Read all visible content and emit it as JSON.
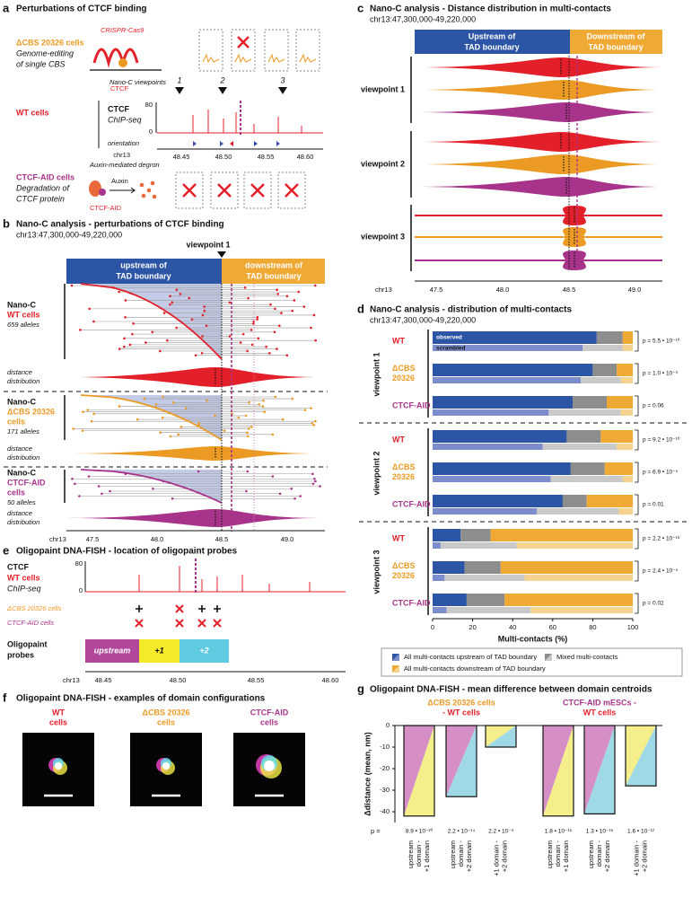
{
  "panel_a": {
    "label": "a",
    "title": "Perturbations of CTCF binding",
    "dcbs_cells": "ΔCBS 20326 cells",
    "dcbs_desc": [
      "Genome-editing",
      "of single CBS"
    ],
    "crispr": "CRISPR-Cas9",
    "ctcf": "CTCF",
    "viewpoints_label": "Nano-C viewpoints",
    "viewpoints": [
      "1",
      "2",
      "3"
    ],
    "wt_cells": "WT cells",
    "track_name": "CTCF",
    "track_assay": "ChIP-seq",
    "track_max": "80",
    "track_min": "0",
    "orientation": "orientation",
    "chrom": "chr13",
    "ticks": [
      "48.45",
      "48.50",
      "48.55",
      "48.60"
    ],
    "aid_cells": "CTCF-AID cells",
    "aid_desc": [
      "Degradation of",
      "CTCF protein"
    ],
    "degron": "Auxin-mediated degron",
    "auxin": "Auxin",
    "aid_protein": "CTCF-AID"
  },
  "panel_b": {
    "label": "b",
    "title": "Nano-C analysis - perturbations of CTCF binding",
    "region": "chr13:47,300,000-49,220,000",
    "viewpoint": "viewpoint 1",
    "upstream": [
      "upstream of",
      "TAD boundary"
    ],
    "downstream": [
      "downstream of",
      "TAD boundary"
    ],
    "samples": [
      {
        "assay": "Nano-C",
        "name": [
          "WT cells"
        ],
        "alleles": "659 alleles"
      },
      {
        "assay": "Nano-C",
        "name": [
          "ΔCBS 20326",
          "cells"
        ],
        "alleles": "171 alleles"
      },
      {
        "assay": "Nano-C",
        "name": [
          "CTCF-AID",
          "cells"
        ],
        "alleles": "50 alleles"
      }
    ],
    "distribution": [
      "distance",
      "distribution"
    ],
    "chrom": "chr13",
    "ticks": [
      "47.5",
      "48.0",
      "48.5",
      "49.0"
    ]
  },
  "panel_c": {
    "label": "c",
    "title": "Nano-C analysis - Distance distribution in multi-contacts",
    "region": "chr13:47,300,000-49,220,000",
    "upstream": [
      "Upstream of",
      "TAD boundary"
    ],
    "downstream": [
      "Downstream of",
      "TAD boundary"
    ],
    "viewpoints": [
      "viewpoint 1",
      "viewpoint 2",
      "viewpoint 3"
    ],
    "chrom": "chr13",
    "ticks": [
      "47.5",
      "48.0",
      "48.5",
      "49.0"
    ]
  },
  "panel_e": {
    "label": "e",
    "title": "Oligopaint DNA-FISH - location of oligopaint probes",
    "track_name": "CTCF",
    "track_cells": "WT cells",
    "track_assay": "ChIP-seq",
    "track_max": "80",
    "track_min": "0",
    "dcbs_cells": "ΔCBS 20326 cells",
    "aid_cells": "CTCF-AID cells",
    "probes_label": [
      "Oligopaint",
      "probes"
    ],
    "probes": [
      "upstream",
      "+1",
      "+2"
    ],
    "chrom": "chr13",
    "ticks": [
      "48.45",
      "48.50",
      "48.55",
      "48.60"
    ]
  },
  "panel_f": {
    "label": "f",
    "title": "Oligopaint DNA-FISH - examples of domain configurations",
    "samples": [
      [
        "WT",
        "cells"
      ],
      [
        "ΔCBS 20326",
        "cells"
      ],
      [
        "CTCF-AID",
        "cells"
      ]
    ]
  },
  "chart_data": [
    {
      "type": "bar",
      "orientation": "horizontal",
      "stacked": true,
      "label": "d",
      "title": "Nano-C analysis - distribution of multi-contacts",
      "subtitle": "chr13:47,300,000-49,220,000",
      "groups": [
        "viewpoint 1",
        "viewpoint 2",
        "viewpoint 3"
      ],
      "categories": [
        [
          "WT"
        ],
        [
          "ΔCBS",
          "20326"
        ],
        [
          "CTCF-AID"
        ],
        [
          "WT"
        ],
        [
          "ΔCBS",
          "20326"
        ],
        [
          "CTCF-AID"
        ],
        [
          "WT"
        ],
        [
          "ΔCBS",
          "20326"
        ],
        [
          "CTCF-AID"
        ]
      ],
      "series_labels": [
        "observed",
        "scrambled"
      ],
      "series": [
        {
          "name": "All multi-contacts upstream of TAD boundary",
          "color": "#2c55a5",
          "values": [
            82,
            80,
            70,
            67,
            69,
            65,
            14,
            16,
            17
          ]
        },
        {
          "name": "Mixed multi-contacts",
          "color": "#8d8d8d",
          "values": [
            13,
            12,
            17,
            17,
            17,
            12,
            15,
            18,
            19
          ]
        },
        {
          "name": "All multi-contacts downstream of TAD boundary",
          "color": "#efa935",
          "values": [
            5,
            8,
            13,
            16,
            14,
            23,
            71,
            66,
            64
          ]
        }
      ],
      "reference_series": [
        {
          "color": "#7d8ccd",
          "values": [
            75,
            74,
            58,
            55,
            59,
            52,
            4,
            6,
            7
          ]
        },
        {
          "color": "#c9c9c9",
          "values": [
            20,
            20,
            36,
            37,
            36,
            41,
            38,
            40,
            42
          ]
        },
        {
          "color": "#f5d28e",
          "values": [
            5,
            6,
            6,
            8,
            5,
            7,
            58,
            54,
            51
          ]
        }
      ],
      "p_values": [
        "p = 5.5 • 10⁻¹⁰",
        "p = 1.0 • 10⁻³",
        "p = 0.06",
        "p = 9.2 • 10⁻¹⁰",
        "p = 6.9 • 10⁻⁵",
        "p = 0.01",
        "p = 2.2 • 10⁻¹⁶",
        "p = 2.4 • 10⁻⁵",
        "p = 0.02"
      ],
      "xlim": [
        0,
        100
      ],
      "xticks": [
        0,
        20,
        40,
        60,
        80,
        100
      ],
      "xlabel": "Multi-contacts (%)"
    },
    {
      "type": "bar",
      "orientation": "vertical",
      "label": "g",
      "title": "Oligopaint DNA-FISH - mean difference between domain centroids",
      "groups": [
        [
          "ΔCBS 20326 cells",
          "- WT cells"
        ],
        [
          "CTCF-AID mESCs -",
          "WT cells"
        ]
      ],
      "categories": [
        [
          "upstream",
          "domain -",
          "+1 domain"
        ],
        [
          "upstream",
          "domain -",
          "+2 domain"
        ],
        [
          "+1 domain -",
          "+2 domain"
        ],
        [
          "upstream",
          "domain -",
          "+1 domain"
        ],
        [
          "upstream",
          "domain -",
          "+2 domain"
        ],
        [
          "+1 domain -",
          "+2 domain"
        ]
      ],
      "values": [
        -42,
        -33,
        -10,
        -42,
        -41,
        -28
      ],
      "ylim": [
        -45,
        0
      ],
      "yticks": [
        0,
        -10,
        -20,
        -30,
        -40
      ],
      "ylabel": "Δdistance (mean, nm)",
      "p_label": "p =",
      "p_values": [
        "8.9 • 10⁻²⁰",
        "2.2 • 10⁻¹⁴",
        "2.2 • 10⁻³",
        "1.8 • 10⁻¹⁶",
        "1.3 • 10⁻¹⁶",
        "1.6 • 10⁻¹²"
      ]
    }
  ]
}
